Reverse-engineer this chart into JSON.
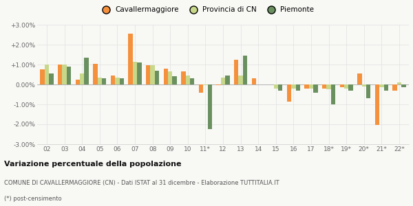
{
  "categories": [
    "02",
    "03",
    "04",
    "05",
    "06",
    "07",
    "08",
    "09",
    "10",
    "11*",
    "12",
    "13",
    "14",
    "15",
    "16",
    "17",
    "18*",
    "19*",
    "20*",
    "21*",
    "22*"
  ],
  "cavallermaggiore": [
    0.75,
    1.0,
    0.25,
    1.02,
    0.45,
    2.55,
    0.95,
    0.8,
    0.65,
    -0.4,
    -0.05,
    1.25,
    0.3,
    0.0,
    -0.85,
    -0.2,
    -0.2,
    -0.15,
    0.55,
    -2.05,
    -0.3
  ],
  "provincia_cn": [
    1.0,
    1.0,
    0.55,
    0.35,
    0.35,
    1.15,
    0.95,
    0.65,
    0.45,
    -0.05,
    0.35,
    0.45,
    0.0,
    -0.2,
    -0.2,
    -0.2,
    -0.25,
    -0.2,
    -0.1,
    -0.15,
    0.1
  ],
  "piemonte": [
    0.55,
    0.9,
    1.35,
    0.3,
    0.3,
    1.1,
    0.7,
    0.4,
    0.3,
    -2.25,
    0.45,
    1.45,
    0.0,
    -0.3,
    -0.3,
    -0.4,
    -1.0,
    -0.3,
    -0.7,
    -0.3,
    -0.15
  ],
  "color_cavallermaggiore": "#f5903c",
  "color_provincia_cn": "#c8d88a",
  "color_piemonte": "#6a9060",
  "title": "Variazione percentuale della popolazione",
  "subtitle": "COMUNE DI CAVALLERMAGGIORE (CN) - Dati ISTAT al 31 dicembre - Elaborazione TUTTITALIA.IT",
  "footnote": "(*) post-censimento",
  "ylim": [
    -3.0,
    3.0
  ],
  "yticks": [
    -3.0,
    -2.0,
    -1.0,
    0.0,
    1.0,
    2.0,
    3.0
  ],
  "background_color": "#f8f8f5",
  "grid_color": "#e0e0e0"
}
